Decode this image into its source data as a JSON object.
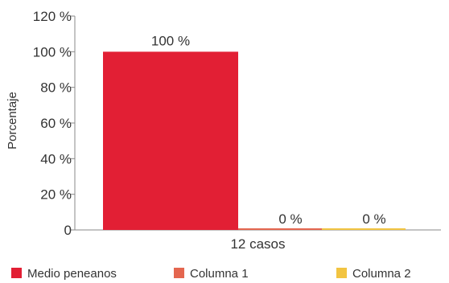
{
  "chart_data": {
    "type": "bar",
    "title": "",
    "xlabel": "",
    "ylabel": "Porcentaje",
    "categories": [
      "12 casos"
    ],
    "ylim": [
      0,
      120
    ],
    "yticks": [
      0,
      20,
      40,
      60,
      80,
      100,
      120
    ],
    "ytick_labels": [
      "0",
      "20 %",
      "40 %",
      "60 %",
      "80 %",
      "100 %",
      "120 %"
    ],
    "series": [
      {
        "name": "Medio peneanos",
        "values": [
          100
        ],
        "label": "100 %",
        "color": "#e21f34"
      },
      {
        "name": "Columna 1",
        "values": [
          0
        ],
        "label": "0 %",
        "color": "#e4664f"
      },
      {
        "name": "Columna 2",
        "values": [
          0
        ],
        "label": "0 %",
        "color": "#f2c441"
      }
    ],
    "grid": false,
    "legend": "bottom"
  }
}
